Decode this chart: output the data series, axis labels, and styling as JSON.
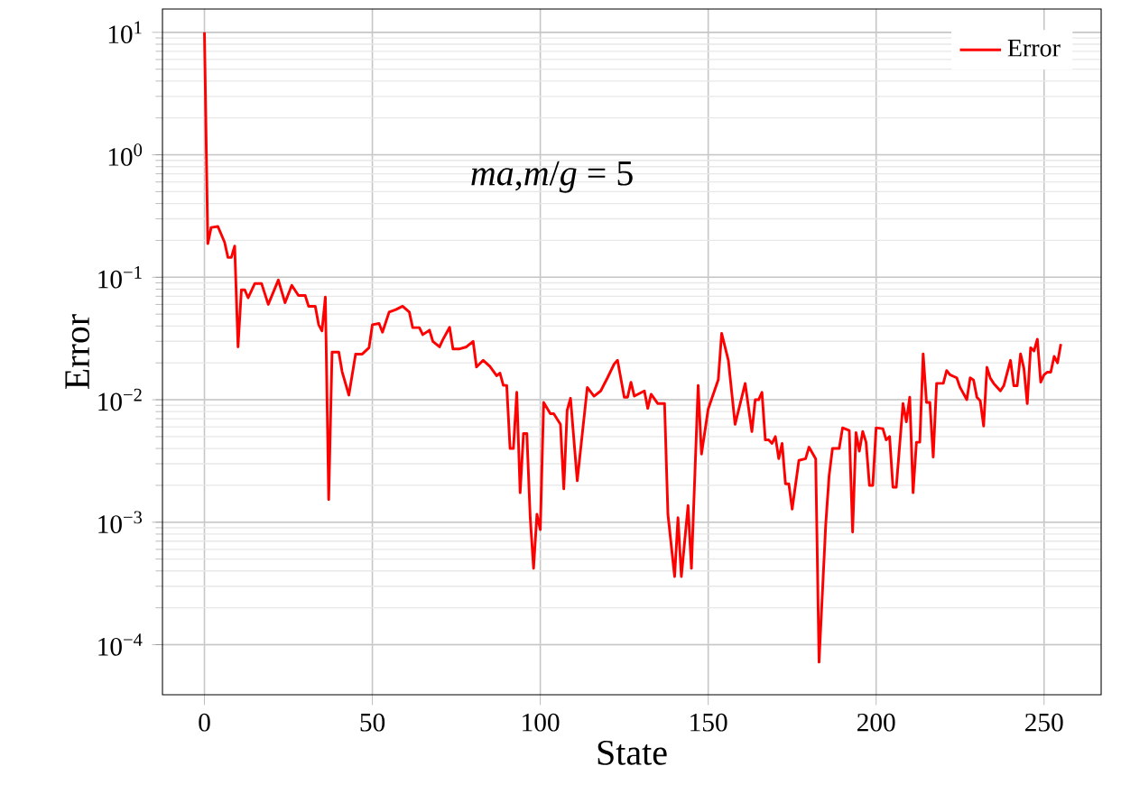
{
  "chart_data": {
    "type": "line",
    "xlabel": "State",
    "ylabel": "Error",
    "annotations": [
      "*ma*,*m*/*g* = 5"
    ],
    "x": [
      0,
      1,
      2,
      4,
      6,
      7,
      8,
      9,
      10,
      11,
      12,
      13,
      15,
      17,
      19,
      22,
      24,
      26,
      28,
      30,
      31,
      33,
      34,
      35,
      36,
      37,
      38,
      40,
      41,
      43,
      45,
      47,
      49,
      50,
      52,
      53,
      55,
      57,
      59,
      61,
      62,
      64,
      65,
      67,
      68,
      70,
      71,
      73,
      74,
      76,
      78,
      80,
      81,
      83,
      85,
      87,
      88,
      89,
      90,
      91,
      92,
      93,
      94,
      95,
      96,
      97,
      98,
      99,
      100,
      101,
      103,
      104,
      106,
      107,
      108,
      109,
      111,
      114,
      116,
      118,
      120,
      122,
      123,
      125,
      126,
      127,
      128,
      131,
      132,
      133,
      135,
      137,
      138,
      140,
      141,
      142,
      144,
      145,
      147,
      148,
      150,
      153,
      154,
      156,
      158,
      160,
      161,
      163,
      164,
      165,
      166,
      167,
      168,
      169,
      170,
      171,
      172,
      173,
      174,
      175,
      177,
      179,
      180,
      182,
      183,
      185,
      186,
      187,
      189,
      190,
      192,
      193,
      194,
      195,
      196,
      197,
      198,
      199,
      200,
      202,
      203,
      204,
      205,
      206,
      208,
      209,
      210,
      211,
      212,
      213,
      214,
      215,
      216,
      217,
      218,
      220,
      221,
      222,
      224,
      225,
      227,
      228,
      229,
      230,
      231,
      232,
      233,
      234,
      235,
      237,
      238,
      240,
      241,
      242,
      243,
      244,
      245,
      246,
      247,
      248,
      249,
      250,
      251,
      252,
      253,
      254,
      255
    ],
    "series": [
      {
        "name": "Error",
        "color": "#ff0000",
        "values": [
          10,
          0.188,
          0.255,
          0.26,
          0.193,
          0.145,
          0.145,
          0.18,
          0.027,
          0.079,
          0.079,
          0.068,
          0.089,
          0.089,
          0.06,
          0.095,
          0.062,
          0.086,
          0.071,
          0.071,
          0.058,
          0.058,
          0.041,
          0.0365,
          0.069,
          0.00153,
          0.0245,
          0.0245,
          0.0169,
          0.0109,
          0.0236,
          0.0236,
          0.0266,
          0.041,
          0.042,
          0.0356,
          0.052,
          0.0545,
          0.058,
          0.052,
          0.0388,
          0.0388,
          0.034,
          0.037,
          0.03,
          0.027,
          0.031,
          0.039,
          0.026,
          0.026,
          0.027,
          0.03,
          0.0185,
          0.021,
          0.0187,
          0.0157,
          0.0165,
          0.0131,
          0.0131,
          0.004,
          0.004,
          0.0115,
          0.00174,
          0.0053,
          0.0053,
          0.00109,
          0.00042,
          0.00116,
          0.00087,
          0.0095,
          0.0077,
          0.0077,
          0.0063,
          0.00187,
          0.0082,
          0.0103,
          0.00218,
          0.0126,
          0.0107,
          0.0118,
          0.0151,
          0.0196,
          0.021,
          0.0105,
          0.0105,
          0.0139,
          0.0107,
          0.0118,
          0.0085,
          0.0111,
          0.0093,
          0.0093,
          0.00116,
          0.00036,
          0.00109,
          0.00036,
          0.00137,
          0.00042,
          0.0131,
          0.0036,
          0.0084,
          0.0146,
          0.0349,
          0.021,
          0.0063,
          0.0105,
          0.0136,
          0.0055,
          0.01,
          0.01,
          0.0115,
          0.0047,
          0.0047,
          0.0044,
          0.005,
          0.0033,
          0.0044,
          0.00206,
          0.00206,
          0.00128,
          0.0032,
          0.0033,
          0.0041,
          0.0033,
          7.2e-05,
          0.00097,
          0.0024,
          0.004,
          0.004,
          0.0059,
          0.0056,
          0.00083,
          0.0054,
          0.0038,
          0.0055,
          0.0045,
          0.002,
          0.002,
          0.0059,
          0.0058,
          0.0047,
          0.005,
          0.00193,
          0.00193,
          0.0093,
          0.0066,
          0.0105,
          0.00174,
          0.0045,
          0.0045,
          0.0237,
          0.0095,
          0.0095,
          0.0034,
          0.0136,
          0.0136,
          0.0173,
          0.016,
          0.0151,
          0.0126,
          0.01,
          0.0151,
          0.0145,
          0.0105,
          0.0098,
          0.0061,
          0.0184,
          0.015,
          0.0136,
          0.0118,
          0.013,
          0.021,
          0.013,
          0.013,
          0.0237,
          0.018,
          0.0093,
          0.0266,
          0.025,
          0.0312,
          0.0139,
          0.016,
          0.0168,
          0.0168,
          0.0226,
          0.02,
          0.0285
        ]
      }
    ],
    "xlim": [
      -12.5,
      267
    ],
    "ylim": [
      3.9e-05,
      15.5
    ],
    "log": "y",
    "xticks": [
      0,
      50,
      100,
      150,
      200,
      250
    ],
    "yticks": [
      {
        "value": 0.0001,
        "label": "10$^{−4}$"
      },
      {
        "value": 0.001,
        "label": "10$^{−3}$"
      },
      {
        "value": 0.01,
        "label": "10$^{−2}$"
      },
      {
        "value": 0.1,
        "label": "10$^{−1}$"
      },
      {
        "value": 1,
        "label": "10$^{0}$"
      },
      {
        "value": 10,
        "label": "10$^{1}$"
      }
    ],
    "grid": true,
    "legend": "top right",
    "line_style": "solid",
    "marker": "none"
  }
}
